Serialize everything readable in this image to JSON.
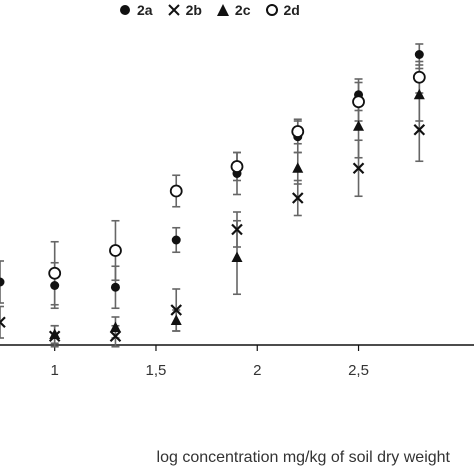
{
  "chart_data": {
    "type": "scatter",
    "xlabel": "log concentration mg/kg of soil dry weight",
    "ylabel": "",
    "xlim": [
      0.73,
      3.07
    ],
    "ylim": [
      -2,
      18
    ],
    "grid": false,
    "legend_placement": "top",
    "x_ticks": [
      {
        "value": 1.0,
        "label": "1"
      },
      {
        "value": 1.5,
        "label": "1,5"
      },
      {
        "value": 2.0,
        "label": "2"
      },
      {
        "value": 2.5,
        "label": "2,5"
      }
    ],
    "series": [
      {
        "name": "2a",
        "marker": "filled-circle",
        "points": [
          {
            "x": 0.73,
            "y": 3.6,
            "err": 1.2
          },
          {
            "x": 1.0,
            "y": 3.4,
            "err": 1.3
          },
          {
            "x": 1.3,
            "y": 3.3,
            "err": 1.2
          },
          {
            "x": 1.6,
            "y": 6.0,
            "err": 0.7
          },
          {
            "x": 1.9,
            "y": 9.8,
            "err": 1.2
          },
          {
            "x": 2.2,
            "y": 11.9,
            "err": 0.9
          },
          {
            "x": 2.5,
            "y": 14.3,
            "err": 0.9
          },
          {
            "x": 2.8,
            "y": 16.6,
            "err": 0.6
          }
        ]
      },
      {
        "name": "2b",
        "marker": "x",
        "points": [
          {
            "x": 0.73,
            "y": 1.3,
            "err": 0.9
          },
          {
            "x": 1.0,
            "y": 0.5,
            "err": 0.6
          },
          {
            "x": 1.3,
            "y": 0.5,
            "err": 0.6
          },
          {
            "x": 1.6,
            "y": 2.0,
            "err": 1.2
          },
          {
            "x": 1.9,
            "y": 6.6,
            "err": 1.0
          },
          {
            "x": 2.2,
            "y": 8.4,
            "err": 1.0
          },
          {
            "x": 2.5,
            "y": 10.1,
            "err": 1.6
          },
          {
            "x": 2.8,
            "y": 12.3,
            "err": 1.8
          }
        ]
      },
      {
        "name": "2c",
        "marker": "filled-triangle",
        "points": [
          {
            "x": 1.0,
            "y": 0.6,
            "err": 0.5
          },
          {
            "x": 1.3,
            "y": 1.0,
            "err": 0.6
          },
          {
            "x": 1.6,
            "y": 1.4,
            "err": 0.6
          },
          {
            "x": 1.9,
            "y": 5.0,
            "err": 2.1
          },
          {
            "x": 2.2,
            "y": 10.1,
            "err": 0.9
          },
          {
            "x": 2.5,
            "y": 12.5,
            "err": 1.8
          },
          {
            "x": 2.8,
            "y": 14.3,
            "err": 1.5
          }
        ]
      },
      {
        "name": "2d",
        "marker": "open-circle",
        "points": [
          {
            "x": 1.0,
            "y": 4.1,
            "err": 1.8
          },
          {
            "x": 1.3,
            "y": 5.4,
            "err": 1.7
          },
          {
            "x": 1.6,
            "y": 8.8,
            "err": 0.9
          },
          {
            "x": 1.9,
            "y": 10.2,
            "err": 0.8
          },
          {
            "x": 2.2,
            "y": 12.2,
            "err": 0.7
          },
          {
            "x": 2.5,
            "y": 13.9,
            "err": 1.1
          },
          {
            "x": 2.8,
            "y": 15.3,
            "err": 0.9
          }
        ]
      }
    ]
  }
}
